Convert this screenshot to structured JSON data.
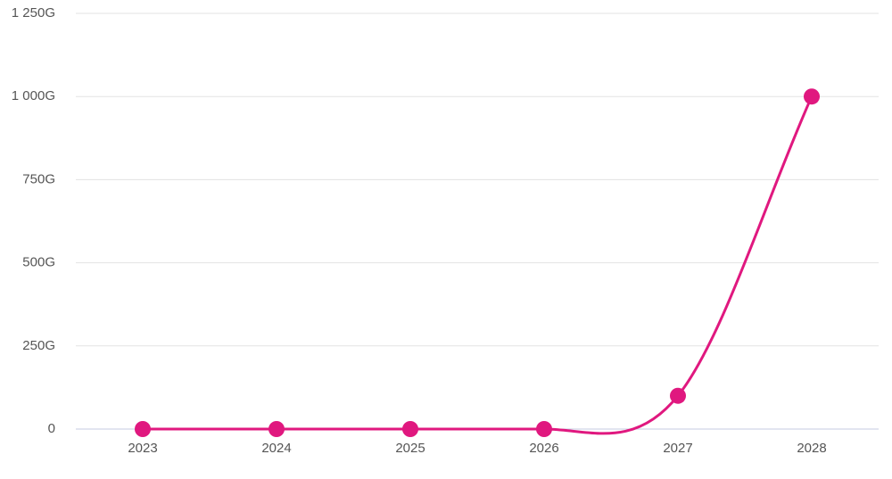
{
  "chart_data": {
    "type": "line",
    "categories": [
      "2023",
      "2024",
      "2025",
      "2026",
      "2027",
      "2028"
    ],
    "series": [
      {
        "name": null,
        "color": "#e0187f",
        "values": [
          0,
          0,
          0,
          0,
          100,
          1000
        ]
      }
    ],
    "ylim": [
      0,
      1250
    ],
    "yticks": [
      0,
      {
        "value": 250,
        "label": "250G"
      },
      {
        "value": 500,
        "label": "500G"
      },
      {
        "value": 750,
        "label": "750G"
      },
      {
        "value": 1000,
        "label": "1 000G"
      },
      {
        "value": 1250,
        "label": "1 250G"
      }
    ],
    "grid": true
  }
}
